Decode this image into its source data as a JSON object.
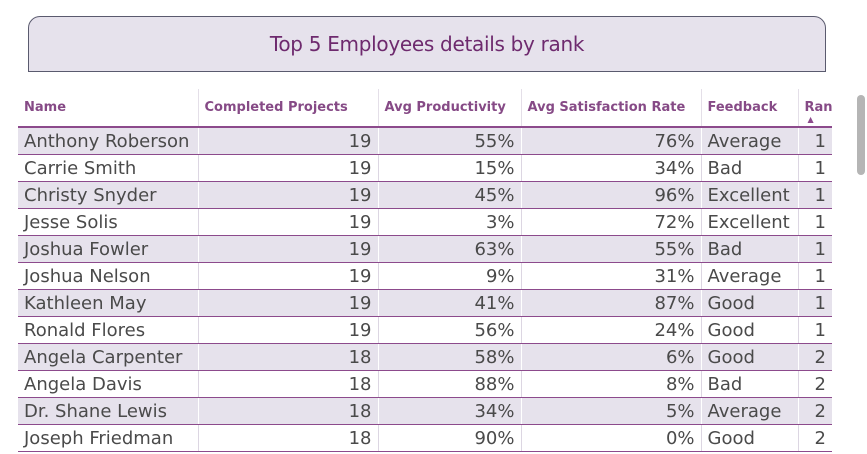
{
  "title": "Top 5 Employees details by rank",
  "columns": [
    "Name",
    "Completed Projects",
    "Avg Productivity",
    "Avg Satisfaction Rate",
    "Feedback",
    "Rank"
  ],
  "sort": {
    "column": "Rank",
    "direction": "ascending"
  },
  "colors": {
    "accent": "#8c4a8c",
    "title": "#6e2a6e",
    "stripe": "#e6e2ec"
  },
  "rows": [
    {
      "name": "Anthony Roberson",
      "projects": "19",
      "productivity": "55%",
      "satisfaction": "76%",
      "feedback": "Average",
      "rank": "1"
    },
    {
      "name": "Carrie Smith",
      "projects": "19",
      "productivity": "15%",
      "satisfaction": "34%",
      "feedback": "Bad",
      "rank": "1"
    },
    {
      "name": "Christy Snyder",
      "projects": "19",
      "productivity": "45%",
      "satisfaction": "96%",
      "feedback": "Excellent",
      "rank": "1"
    },
    {
      "name": "Jesse Solis",
      "projects": "19",
      "productivity": "3%",
      "satisfaction": "72%",
      "feedback": "Excellent",
      "rank": "1"
    },
    {
      "name": "Joshua Fowler",
      "projects": "19",
      "productivity": "63%",
      "satisfaction": "55%",
      "feedback": "Bad",
      "rank": "1"
    },
    {
      "name": "Joshua Nelson",
      "projects": "19",
      "productivity": "9%",
      "satisfaction": "31%",
      "feedback": "Average",
      "rank": "1"
    },
    {
      "name": "Kathleen May",
      "projects": "19",
      "productivity": "41%",
      "satisfaction": "87%",
      "feedback": "Good",
      "rank": "1"
    },
    {
      "name": "Ronald Flores",
      "projects": "19",
      "productivity": "56%",
      "satisfaction": "24%",
      "feedback": "Good",
      "rank": "1"
    },
    {
      "name": "Angela Carpenter",
      "projects": "18",
      "productivity": "58%",
      "satisfaction": "6%",
      "feedback": "Good",
      "rank": "2"
    },
    {
      "name": "Angela Davis",
      "projects": "18",
      "productivity": "88%",
      "satisfaction": "8%",
      "feedback": "Bad",
      "rank": "2"
    },
    {
      "name": "Dr. Shane Lewis",
      "projects": "18",
      "productivity": "34%",
      "satisfaction": "5%",
      "feedback": "Average",
      "rank": "2"
    },
    {
      "name": "Joseph Friedman",
      "projects": "18",
      "productivity": "90%",
      "satisfaction": "0%",
      "feedback": "Good",
      "rank": "2"
    }
  ]
}
